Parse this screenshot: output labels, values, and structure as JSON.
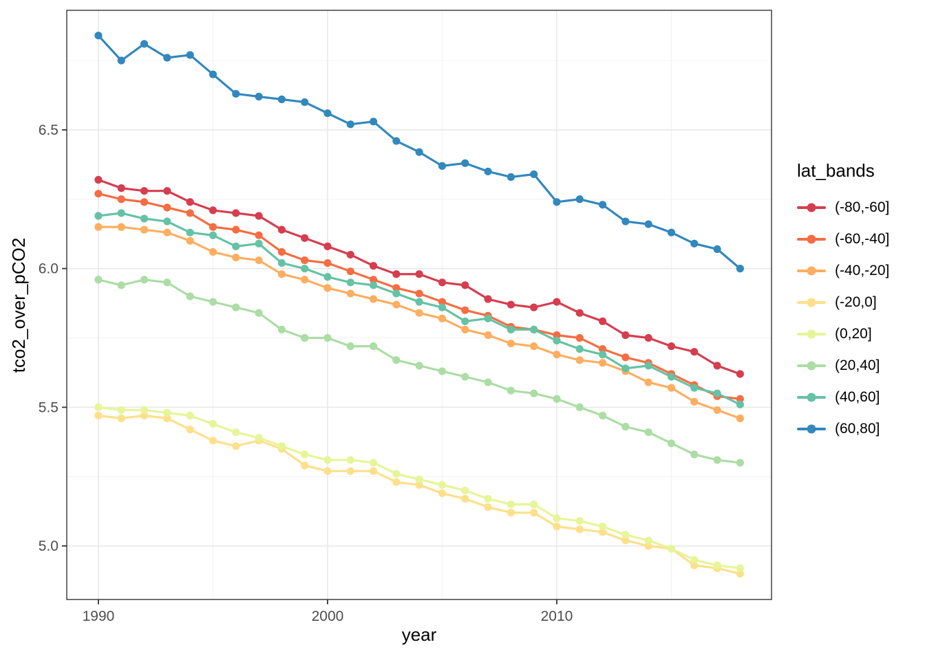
{
  "figure": {
    "background_color": "#FFFFFF",
    "panel_border_color": "#333333",
    "grid_major_color": "#E8E8E8",
    "grid_minor_color": "#F1F1F1",
    "tick_color": "#333333",
    "tick_label_color": "#4D4D4D",
    "title_color": "#000000"
  },
  "axes": {
    "x_title": "year",
    "y_title": "tco2_over_pCO2"
  },
  "legend": {
    "title": "lat_bands",
    "entries": [
      "(-80,-60]",
      "(-60,-40]",
      "(-40,-20]",
      "(-20,0]",
      "(0,20]",
      "(20,40]",
      "(40,60]",
      "(60,80]"
    ]
  },
  "chart_data": {
    "type": "line",
    "title": "",
    "xlabel": "year",
    "ylabel": "tco2_over_pCO2",
    "legend_title": "lat_bands",
    "legend_position": "right",
    "grid": true,
    "x": [
      1990,
      1991,
      1992,
      1993,
      1994,
      1995,
      1996,
      1997,
      1998,
      1999,
      2000,
      2001,
      2002,
      2003,
      2004,
      2005,
      2006,
      2007,
      2008,
      2009,
      2010,
      2011,
      2012,
      2013,
      2014,
      2015,
      2016,
      2017,
      2018
    ],
    "xlim": [
      1988.62,
      2019.37
    ],
    "ylim": [
      4.807,
      6.931
    ],
    "x_major_ticks": [
      1990,
      2000,
      2010
    ],
    "x_minor_ticks": [
      1995,
      2005,
      2015
    ],
    "x_tick_labels": [
      "1990",
      "2000",
      "2010"
    ],
    "y_major_ticks": [
      5.0,
      5.5,
      6.0,
      6.5
    ],
    "y_minor_ticks": [
      5.25,
      5.75,
      6.25,
      6.75
    ],
    "y_tick_labels": [
      "5.0",
      "5.5",
      "6.0",
      "6.5"
    ],
    "series": [
      {
        "name": "(-80,-60]",
        "color": "#D53E4F",
        "values": [
          6.32,
          6.29,
          6.28,
          6.28,
          6.24,
          6.21,
          6.2,
          6.19,
          6.14,
          6.11,
          6.08,
          6.05,
          6.01,
          5.98,
          5.98,
          5.95,
          5.94,
          5.89,
          5.87,
          5.86,
          5.88,
          5.84,
          5.81,
          5.76,
          5.75,
          5.72,
          5.7,
          5.65,
          5.62
        ]
      },
      {
        "name": "(-60,-40]",
        "color": "#F46D43",
        "values": [
          6.27,
          6.25,
          6.24,
          6.22,
          6.2,
          6.15,
          6.14,
          6.12,
          6.06,
          6.03,
          6.02,
          5.99,
          5.96,
          5.93,
          5.91,
          5.88,
          5.85,
          5.83,
          5.79,
          5.78,
          5.76,
          5.75,
          5.71,
          5.68,
          5.66,
          5.62,
          5.58,
          5.54,
          5.53
        ]
      },
      {
        "name": "(-40,-20]",
        "color": "#FDAE61",
        "values": [
          6.15,
          6.15,
          6.14,
          6.13,
          6.1,
          6.06,
          6.04,
          6.03,
          5.98,
          5.96,
          5.93,
          5.91,
          5.89,
          5.87,
          5.84,
          5.82,
          5.78,
          5.76,
          5.73,
          5.72,
          5.69,
          5.67,
          5.66,
          5.63,
          5.59,
          5.57,
          5.52,
          5.49,
          5.46
        ]
      },
      {
        "name": "(-20,0]",
        "color": "#FEE08B",
        "values": [
          5.47,
          5.46,
          5.47,
          5.46,
          5.42,
          5.38,
          5.36,
          5.38,
          5.35,
          5.29,
          5.27,
          5.27,
          5.27,
          5.23,
          5.22,
          5.19,
          5.17,
          5.14,
          5.12,
          5.12,
          5.07,
          5.06,
          5.05,
          5.02,
          5.0,
          4.99,
          4.93,
          4.92,
          4.9
        ]
      },
      {
        "name": "(0,20]",
        "color": "#E6F598",
        "values": [
          5.5,
          5.49,
          5.49,
          5.48,
          5.47,
          5.44,
          5.41,
          5.39,
          5.36,
          5.33,
          5.31,
          5.31,
          5.3,
          5.26,
          5.24,
          5.22,
          5.2,
          5.17,
          5.15,
          5.15,
          5.1,
          5.09,
          5.07,
          5.04,
          5.02,
          4.99,
          4.95,
          4.93,
          4.92
        ]
      },
      {
        "name": "(20,40]",
        "color": "#ABDDA4",
        "values": [
          5.96,
          5.94,
          5.96,
          5.95,
          5.9,
          5.88,
          5.86,
          5.84,
          5.78,
          5.75,
          5.75,
          5.72,
          5.72,
          5.67,
          5.65,
          5.63,
          5.61,
          5.59,
          5.56,
          5.55,
          5.53,
          5.5,
          5.47,
          5.43,
          5.41,
          5.37,
          5.33,
          5.31,
          5.3
        ]
      },
      {
        "name": "(40,60]",
        "color": "#66C2A5",
        "values": [
          6.19,
          6.2,
          6.18,
          6.17,
          6.13,
          6.12,
          6.08,
          6.09,
          6.02,
          6.0,
          5.97,
          5.95,
          5.94,
          5.91,
          5.88,
          5.86,
          5.81,
          5.82,
          5.78,
          5.78,
          5.74,
          5.71,
          5.69,
          5.64,
          5.65,
          5.61,
          5.57,
          5.55,
          5.51
        ]
      },
      {
        "name": "(60,80]",
        "color": "#3288BD",
        "values": [
          6.84,
          6.75,
          6.81,
          6.76,
          6.77,
          6.7,
          6.63,
          6.62,
          6.61,
          6.6,
          6.56,
          6.52,
          6.53,
          6.46,
          6.42,
          6.37,
          6.38,
          6.35,
          6.33,
          6.34,
          6.24,
          6.25,
          6.23,
          6.17,
          6.16,
          6.13,
          6.09,
          6.07,
          6.0
        ]
      }
    ]
  }
}
